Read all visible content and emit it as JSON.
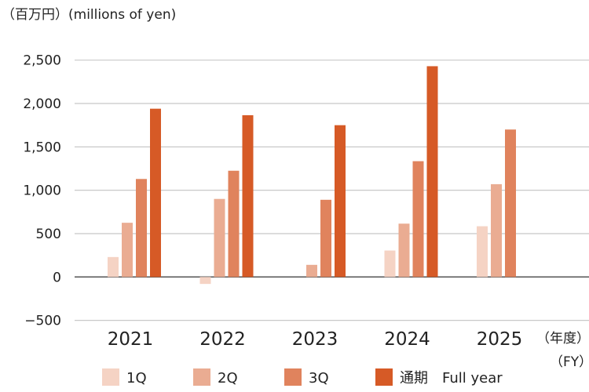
{
  "chart_data": {
    "type": "bar",
    "unit_label": "（百万円）(millions of yen)",
    "x_unit_label": [
      "（年度）",
      "（FY）"
    ],
    "categories": [
      "2021",
      "2022",
      "2023",
      "2024",
      "2025"
    ],
    "ylim": [
      -500,
      2500
    ],
    "yticks": [
      -500,
      0,
      500,
      1000,
      1500,
      2000,
      2500
    ],
    "ytick_labels": [
      "−500",
      "0",
      "500",
      "1,000",
      "1,500",
      "2,000",
      "2,500"
    ],
    "grid": true,
    "legend_position": "bottom",
    "series": [
      {
        "name": "1Q",
        "color": "#f5d3c4",
        "values": [
          230,
          -80,
          null,
          305,
          585
        ]
      },
      {
        "name": "2Q",
        "color": "#eaac92",
        "values": [
          625,
          900,
          140,
          615,
          1070
        ]
      },
      {
        "name": "3Q",
        "color": "#e0835d",
        "values": [
          1130,
          1225,
          890,
          1335,
          1700
        ]
      },
      {
        "name": "通期　Full year",
        "color": "#d65a26",
        "values": [
          1940,
          1865,
          1750,
          2430,
          null
        ]
      }
    ]
  }
}
